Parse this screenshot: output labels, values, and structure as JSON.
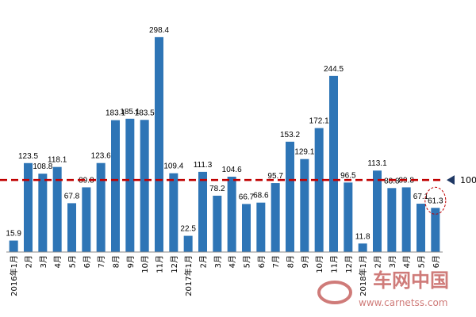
{
  "chart_data": {
    "type": "bar",
    "categories": [
      "2016年1月",
      "2月",
      "3月",
      "4月",
      "5月",
      "6月",
      "7月",
      "8月",
      "9月",
      "10月",
      "11月",
      "12月",
      "2017年1月",
      "2月",
      "3月",
      "4月",
      "5月",
      "6月",
      "7月",
      "8月",
      "9月",
      "10月",
      "11月",
      "12月",
      "2018年1月",
      "2月",
      "3月",
      "4月",
      "5月",
      "6月"
    ],
    "values": [
      15.9,
      123.5,
      108.8,
      118.1,
      67.8,
      89.8,
      123.6,
      183.1,
      185.1,
      183.5,
      298.4,
      109.4,
      22.5,
      111.3,
      78.2,
      104.6,
      66.7,
      68.6,
      95.7,
      153.2,
      129.1,
      172.1,
      244.5,
      96.5,
      11.8,
      113.1,
      88.8,
      89.8,
      67.1,
      61.3
    ],
    "color": "#2e75b6",
    "ylim": [
      0,
      350
    ],
    "reference_line": 100,
    "reference_color": "#c00000"
  },
  "watermark": {
    "text": "车网中国",
    "url": "www.carnetss.com"
  }
}
